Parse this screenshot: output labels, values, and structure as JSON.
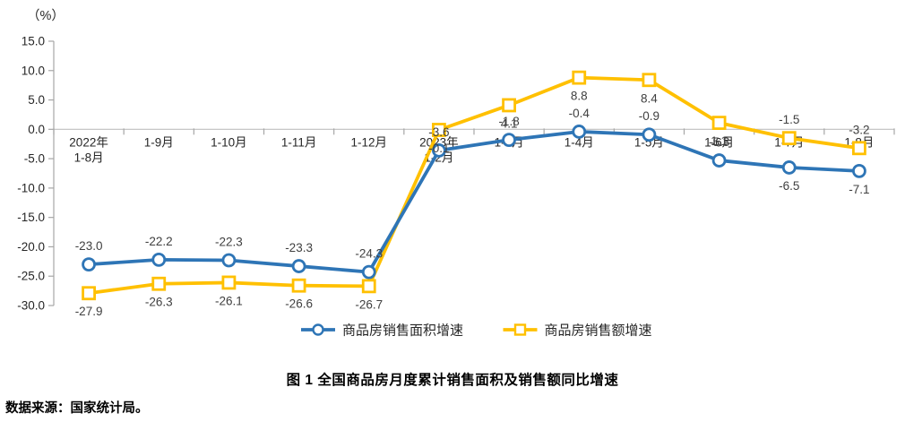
{
  "chart_data": {
    "type": "line",
    "title": "图 1  全国商品房月度累计销售面积及销售额同比增速",
    "unit_label": "（%）",
    "source_note": "数据来源：国家统计局。",
    "categories": [
      "2022年\n1-8月",
      "1-9月",
      "1-10月",
      "1-11月",
      "1-12月",
      "2023年\n1-2月",
      "1-3月",
      "1-4月",
      "1-5月",
      "1-6月",
      "1-7月",
      "1-8月"
    ],
    "ylim": [
      -30,
      15
    ],
    "y_ticks": [
      15.0,
      10.0,
      5.0,
      0.0,
      -5.0,
      -10.0,
      -15.0,
      -20.0,
      -25.0,
      -30.0
    ],
    "grid": "zero-axis-only",
    "legend_position": "bottom-center",
    "series": [
      {
        "name": "商品房销售面积增速",
        "color": "#2E75B6",
        "marker": "circle",
        "values": [
          -23.0,
          -22.2,
          -22.3,
          -23.3,
          -24.3,
          -3.6,
          -1.8,
          -0.4,
          -0.9,
          -5.3,
          -6.5,
          -7.1
        ],
        "label_positions": [
          "above",
          "above",
          "above",
          "above",
          "above",
          "above",
          "above",
          "above",
          "above",
          "above",
          "below",
          "below"
        ]
      },
      {
        "name": "商品房销售额增速",
        "color": "#FFC000",
        "marker": "square",
        "values": [
          -27.9,
          -26.3,
          -26.1,
          -26.6,
          -26.7,
          -0.1,
          4.1,
          8.8,
          8.4,
          1.1,
          -1.5,
          -3.2
        ],
        "label_positions": [
          "below",
          "below",
          "below",
          "below",
          "below",
          "below",
          "below",
          "below",
          "below",
          "below",
          "above",
          "above"
        ]
      }
    ],
    "colors": {
      "axis_line": "#A6A6A6",
      "zero_line": "#BFBFBF",
      "tick_text": "#262626",
      "data_label_text": "#404040",
      "background": "#FFFFFF"
    }
  }
}
